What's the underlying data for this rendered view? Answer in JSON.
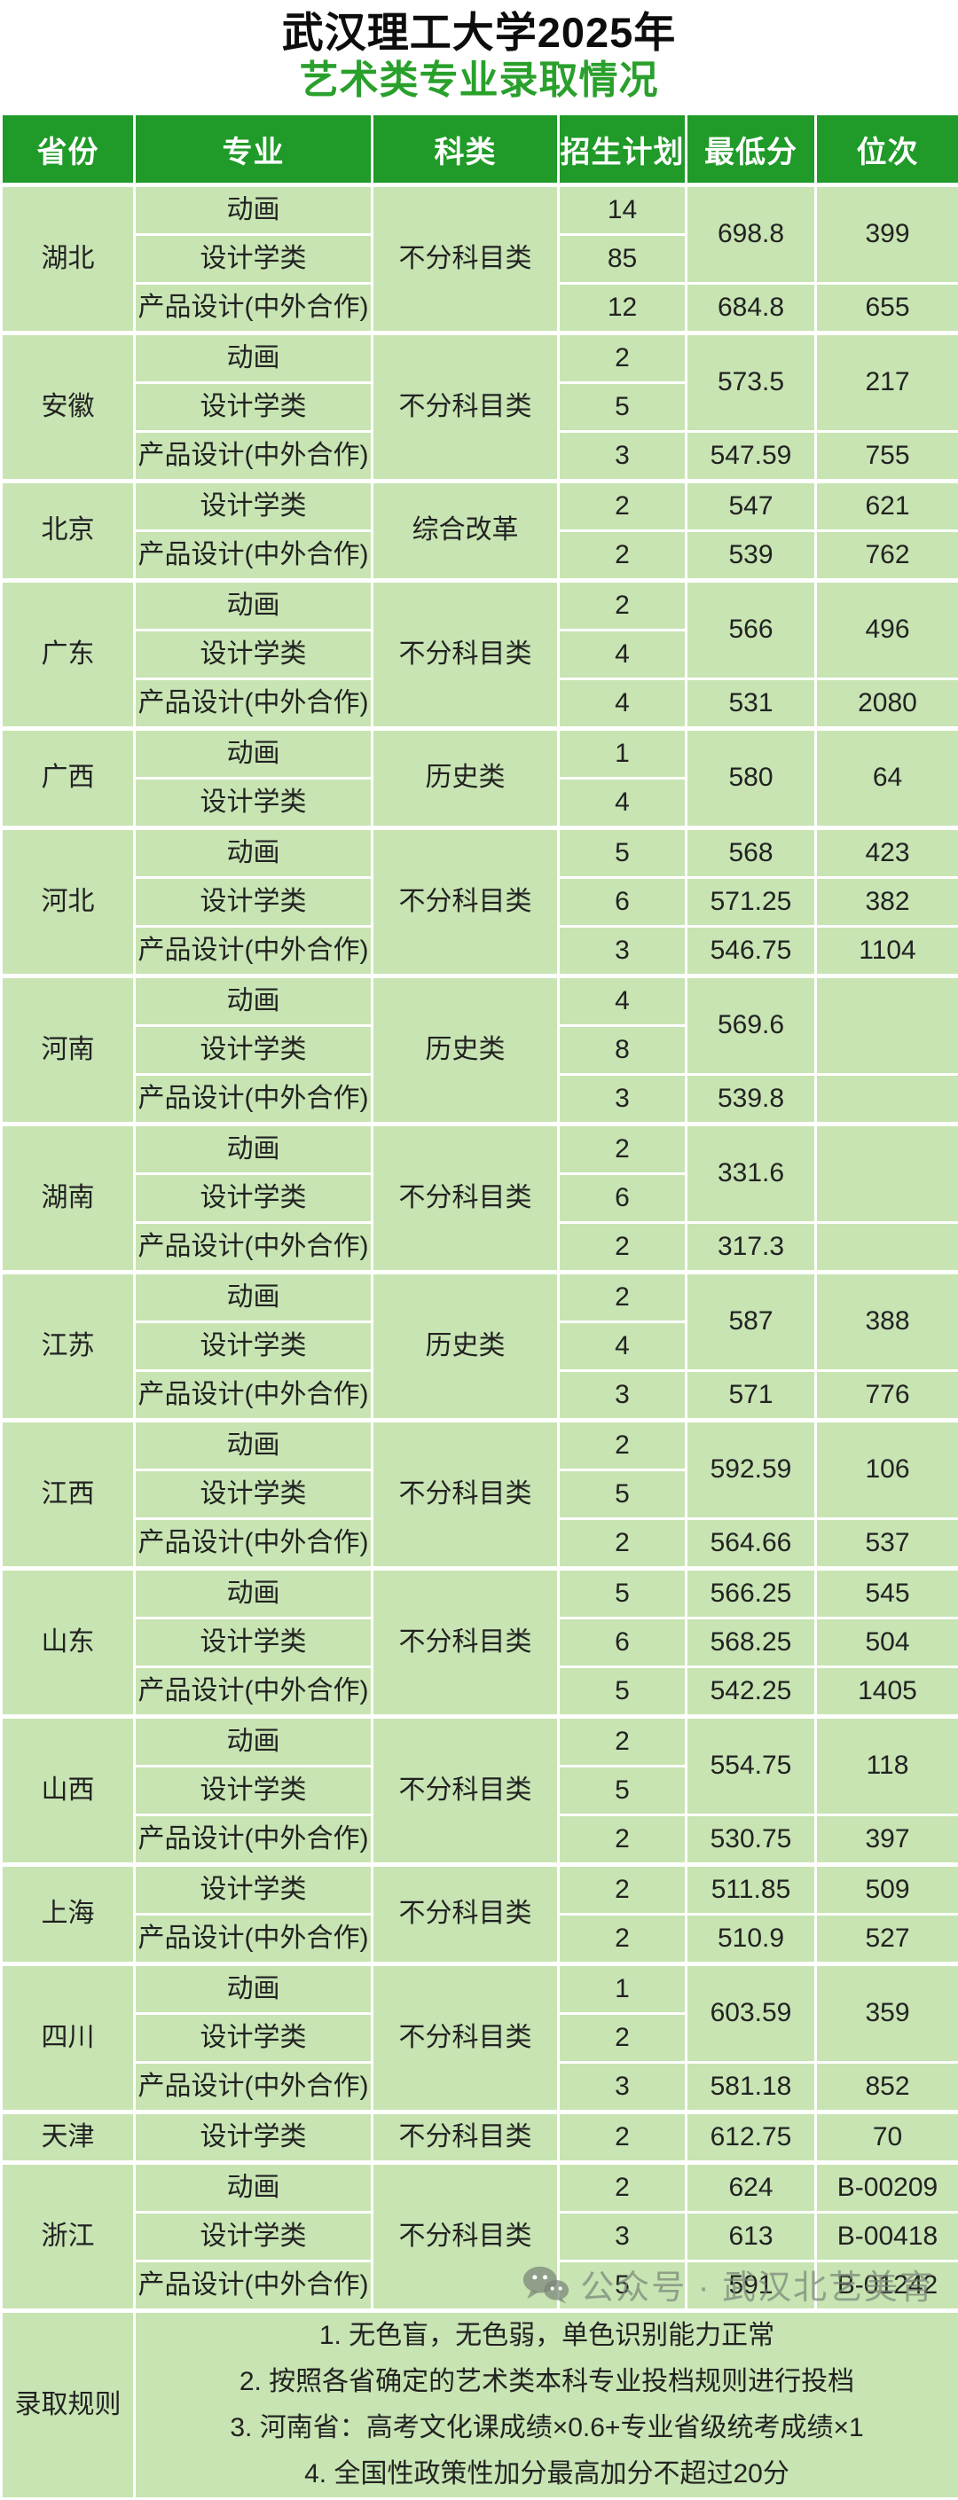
{
  "page": {
    "title_black": "武汉理工大学2025年",
    "title_green": "艺术类专业录取情况"
  },
  "colors": {
    "header_green": "#209a28",
    "title_green": "#2aa02c",
    "cell_green": "#c7e4b2",
    "border_white": "#ffffff",
    "text_dark": "#222222",
    "watermark_gray": "rgba(122,132,120,0.72)"
  },
  "table": {
    "headers": [
      "省份",
      "专业",
      "科类",
      "招生计划",
      "最低分",
      "位次"
    ],
    "provinces": [
      {
        "name": "湖北",
        "category": "不分科目类",
        "rows": [
          {
            "major": "动画",
            "plan": "14",
            "score": "698.8",
            "sspan": 2,
            "rank": "399",
            "rspan": 2
          },
          {
            "major": "设计学类",
            "plan": "85"
          },
          {
            "major": "产品设计(中外合作)",
            "plan": "12",
            "score": "684.8",
            "rank": "655"
          }
        ]
      },
      {
        "name": "安徽",
        "category": "不分科目类",
        "rows": [
          {
            "major": "动画",
            "plan": "2",
            "score": "573.5",
            "sspan": 2,
            "rank": "217",
            "rspan": 2
          },
          {
            "major": "设计学类",
            "plan": "5"
          },
          {
            "major": "产品设计(中外合作)",
            "plan": "3",
            "score": "547.59",
            "rank": "755"
          }
        ]
      },
      {
        "name": "北京",
        "category": "综合改革",
        "rows": [
          {
            "major": "设计学类",
            "plan": "2",
            "score": "547",
            "rank": "621"
          },
          {
            "major": "产品设计(中外合作)",
            "plan": "2",
            "score": "539",
            "rank": "762"
          }
        ]
      },
      {
        "name": "广东",
        "category": "不分科目类",
        "rows": [
          {
            "major": "动画",
            "plan": "2",
            "score": "566",
            "sspan": 2,
            "rank": "496",
            "rspan": 2
          },
          {
            "major": "设计学类",
            "plan": "4"
          },
          {
            "major": "产品设计(中外合作)",
            "plan": "4",
            "score": "531",
            "rank": "2080"
          }
        ]
      },
      {
        "name": "广西",
        "category": "历史类",
        "rows": [
          {
            "major": "动画",
            "plan": "1",
            "score": "580",
            "sspan": 2,
            "rank": "64",
            "rspan": 2
          },
          {
            "major": "设计学类",
            "plan": "4"
          }
        ]
      },
      {
        "name": "河北",
        "category": "不分科目类",
        "rows": [
          {
            "major": "动画",
            "plan": "5",
            "score": "568",
            "rank": "423"
          },
          {
            "major": "设计学类",
            "plan": "6",
            "score": "571.25",
            "rank": "382"
          },
          {
            "major": "产品设计(中外合作)",
            "plan": "3",
            "score": "546.75",
            "rank": "1104"
          }
        ]
      },
      {
        "name": "河南",
        "category": "历史类",
        "rows": [
          {
            "major": "动画",
            "plan": "4",
            "score": "569.6",
            "sspan": 2,
            "rank": "",
            "rspan": 2
          },
          {
            "major": "设计学类",
            "plan": "8"
          },
          {
            "major": "产品设计(中外合作)",
            "plan": "3",
            "score": "539.8",
            "rank": ""
          }
        ]
      },
      {
        "name": "湖南",
        "category": "不分科目类",
        "rows": [
          {
            "major": "动画",
            "plan": "2",
            "score": "331.6",
            "sspan": 2,
            "rank": "",
            "rspan": 2
          },
          {
            "major": "设计学类",
            "plan": "6"
          },
          {
            "major": "产品设计(中外合作)",
            "plan": "2",
            "score": "317.3",
            "rank": ""
          }
        ]
      },
      {
        "name": "江苏",
        "category": "历史类",
        "rows": [
          {
            "major": "动画",
            "plan": "2",
            "score": "587",
            "sspan": 2,
            "rank": "388",
            "rspan": 2
          },
          {
            "major": "设计学类",
            "plan": "4"
          },
          {
            "major": "产品设计(中外合作)",
            "plan": "3",
            "score": "571",
            "rank": "776"
          }
        ]
      },
      {
        "name": "江西",
        "category": "不分科目类",
        "rows": [
          {
            "major": "动画",
            "plan": "2",
            "score": "592.59",
            "sspan": 2,
            "rank": "106",
            "rspan": 2
          },
          {
            "major": "设计学类",
            "plan": "5"
          },
          {
            "major": "产品设计(中外合作)",
            "plan": "2",
            "score": "564.66",
            "rank": "537"
          }
        ]
      },
      {
        "name": "山东",
        "category": "不分科目类",
        "rows": [
          {
            "major": "动画",
            "plan": "5",
            "score": "566.25",
            "rank": "545"
          },
          {
            "major": "设计学类",
            "plan": "6",
            "score": "568.25",
            "rank": "504"
          },
          {
            "major": "产品设计(中外合作)",
            "plan": "5",
            "score": "542.25",
            "rank": "1405"
          }
        ]
      },
      {
        "name": "山西",
        "category": "不分科目类",
        "rows": [
          {
            "major": "动画",
            "plan": "2",
            "score": "554.75",
            "sspan": 2,
            "rank": "118",
            "rspan": 2
          },
          {
            "major": "设计学类",
            "plan": "5"
          },
          {
            "major": "产品设计(中外合作)",
            "plan": "2",
            "score": "530.75",
            "rank": "397"
          }
        ]
      },
      {
        "name": "上海",
        "category": "不分科目类",
        "rows": [
          {
            "major": "设计学类",
            "plan": "2",
            "score": "511.85",
            "rank": "509"
          },
          {
            "major": "产品设计(中外合作)",
            "plan": "2",
            "score": "510.9",
            "rank": "527"
          }
        ]
      },
      {
        "name": "四川",
        "category": "不分科目类",
        "rows": [
          {
            "major": "动画",
            "plan": "1",
            "score": "603.59",
            "sspan": 2,
            "rank": "359",
            "rspan": 2
          },
          {
            "major": "设计学类",
            "plan": "2"
          },
          {
            "major": "产品设计(中外合作)",
            "plan": "3",
            "score": "581.18",
            "rank": "852"
          }
        ]
      },
      {
        "name": "天津",
        "category": "不分科目类",
        "rows": [
          {
            "major": "设计学类",
            "plan": "2",
            "score": "612.75",
            "rank": "70"
          }
        ]
      },
      {
        "name": "浙江",
        "category": "不分科目类",
        "rows": [
          {
            "major": "动画",
            "plan": "2",
            "score": "624",
            "rank": "B-00209"
          },
          {
            "major": "设计学类",
            "plan": "3",
            "score": "613",
            "rank": "B-00418"
          },
          {
            "major": "产品设计(中外合作)",
            "plan": "5",
            "score": "591",
            "rank": "B-01242"
          }
        ]
      }
    ]
  },
  "rules": {
    "label": "录取规则",
    "lines": [
      "1. 无色盲，无色弱，单色识别能力正常",
      "2. 按照各省确定的艺术类本科专业投档规则进行投档",
      "3. 河南省：高考文化课成绩×0.6+专业省级统考成绩×1",
      "4. 全国性政策性加分最高加分不超过20分"
    ]
  },
  "watermark": {
    "icon": "wechat-icon",
    "text": "公众号 · 武汉北艺美育"
  }
}
